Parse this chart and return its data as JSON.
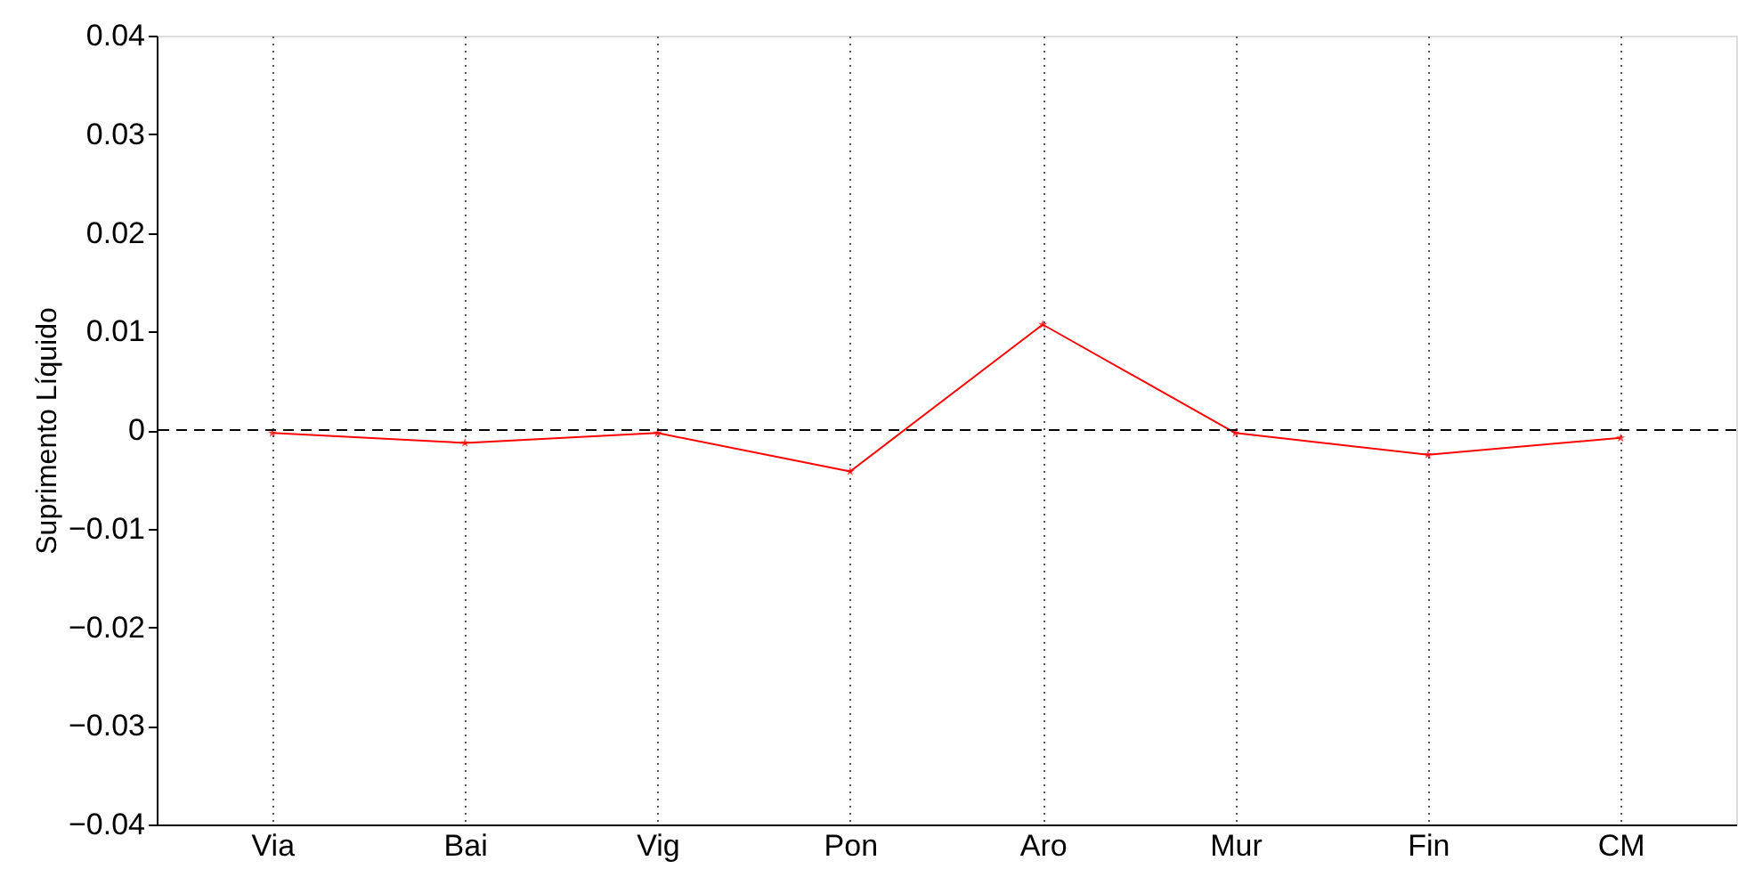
{
  "chart_data": {
    "type": "line",
    "ylabel": "Suprimento Líquido",
    "categories": [
      "Via",
      "Bai",
      "Vig",
      "Pon",
      "Aro",
      "Mur",
      "Fin",
      "CM"
    ],
    "ylim": [
      -0.04,
      0.04
    ],
    "yticks": [
      -0.04,
      -0.03,
      -0.02,
      -0.01,
      0,
      0.01,
      0.02,
      0.03,
      0.04
    ],
    "grid": "x",
    "marker": "star",
    "line_style": "solid",
    "ref_lines": [
      {
        "axis": "y",
        "value": 0,
        "color": "#000000",
        "line_style": "dashed"
      }
    ],
    "series": [
      {
        "color": "#ff0000",
        "values": [
          -0.0003,
          -0.0013,
          -0.0003,
          -0.0042,
          0.0107,
          -0.0003,
          -0.0025,
          -0.0008
        ]
      }
    ]
  }
}
